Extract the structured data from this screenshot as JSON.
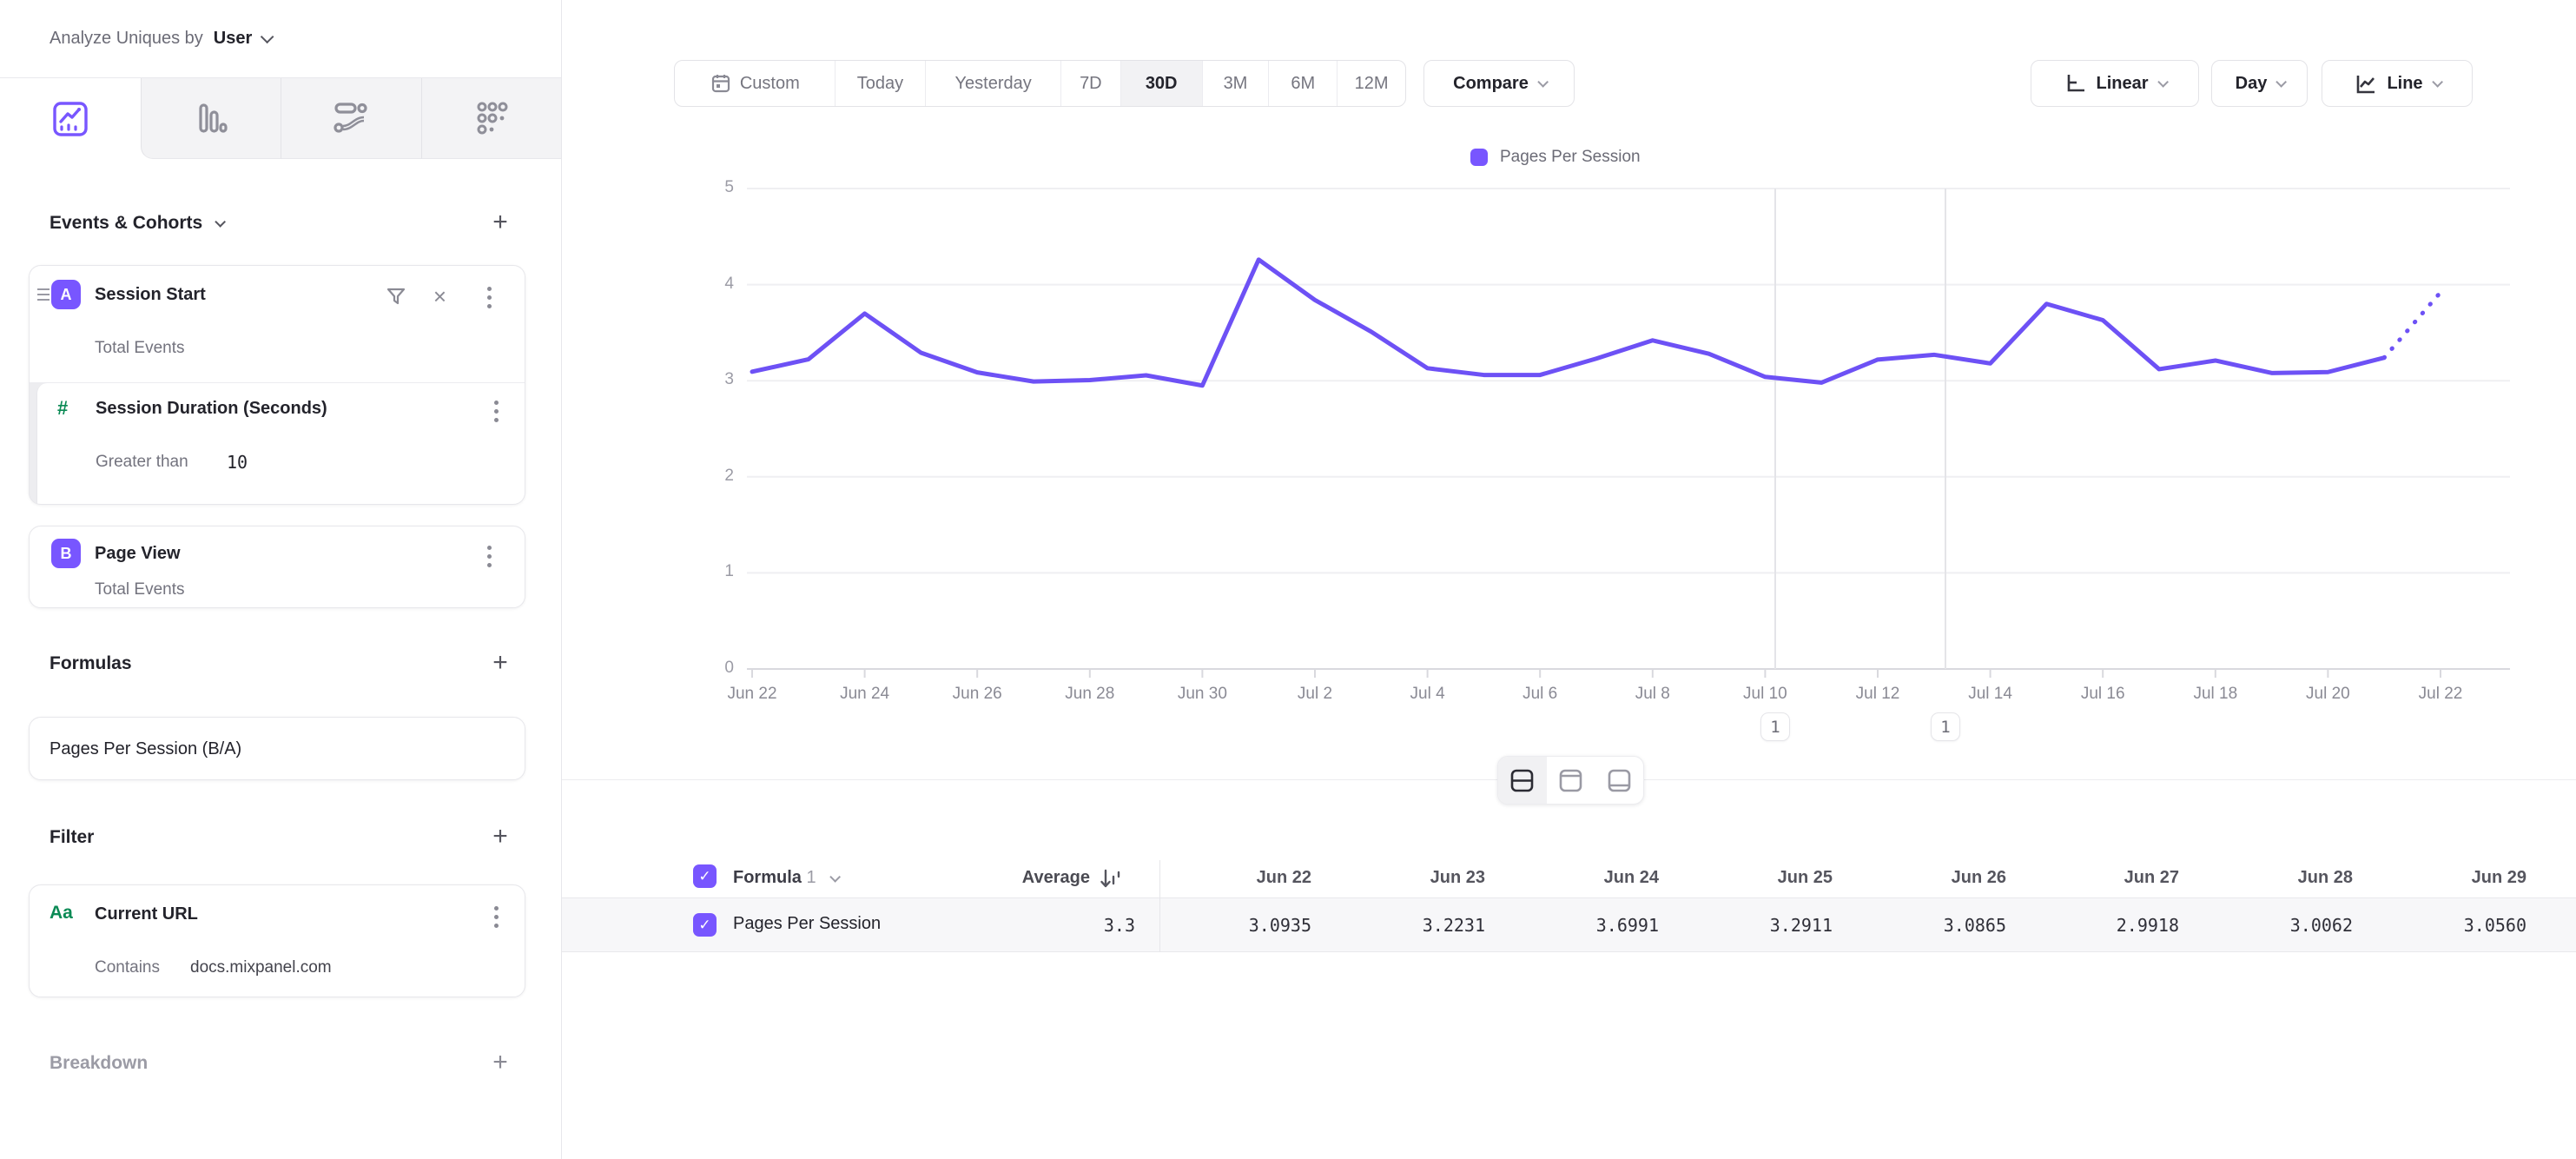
{
  "colors": {
    "accent": "#7856ff",
    "line": "#6d51f5",
    "green": "#0b8a55"
  },
  "sidebar": {
    "header": {
      "label": "Analyze Uniques by",
      "value": "User"
    },
    "tabs": [
      {
        "icon": "insights-line-chart-icon",
        "selected": true
      },
      {
        "icon": "funnels-bars-icon",
        "selected": false
      },
      {
        "icon": "flows-icon",
        "selected": false
      },
      {
        "icon": "retention-dots-icon",
        "selected": false
      }
    ],
    "events_section": {
      "title": "Events & Cohorts",
      "add_label": "+"
    },
    "event_a": {
      "badge": "A",
      "title": "Session Start",
      "subtitle": "Total Events"
    },
    "event_a_property": {
      "icon": "#",
      "title": "Session Duration (Seconds)",
      "operator": "Greater than",
      "value": "10"
    },
    "event_b": {
      "badge": "B",
      "title": "Page View",
      "subtitle": "Total Events"
    },
    "formulas_section": {
      "title": "Formulas",
      "add_label": "+"
    },
    "formula_field": {
      "value": "Pages Per Session (B/A)"
    },
    "filter_section": {
      "title": "Filter",
      "add_label": "+"
    },
    "filter_item": {
      "icon": "Aa",
      "title": "Current URL",
      "operator": "Contains",
      "value": "docs.mixpanel.com"
    },
    "breakdown_section": {
      "title": "Breakdown",
      "add_label": "+"
    }
  },
  "toolbar": {
    "date_ranges": [
      "Custom",
      "Today",
      "Yesterday",
      "7D",
      "30D",
      "3M",
      "6M",
      "12M"
    ],
    "selected_range": "30D",
    "compare_label": "Compare",
    "scale_label": "Linear",
    "granularity_label": "Day",
    "chart_type_label": "Line"
  },
  "chart_data": {
    "type": "line",
    "legend": [
      "Pages Per Session"
    ],
    "legend_position": "top-center",
    "x": [
      "Jun 22",
      "Jun 23",
      "Jun 24",
      "Jun 25",
      "Jun 26",
      "Jun 27",
      "Jun 28",
      "Jun 29",
      "Jun 30",
      "Jul 1",
      "Jul 2",
      "Jul 3",
      "Jul 4",
      "Jul 5",
      "Jul 6",
      "Jul 7",
      "Jul 8",
      "Jul 9",
      "Jul 10",
      "Jul 11",
      "Jul 12",
      "Jul 13",
      "Jul 14",
      "Jul 15",
      "Jul 16",
      "Jul 17",
      "Jul 18",
      "Jul 19",
      "Jul 20",
      "Jul 21",
      "Jul 22"
    ],
    "series": [
      {
        "name": "Pages Per Session",
        "values": [
          3.0935,
          3.2231,
          3.6991,
          3.2911,
          3.0865,
          2.9918,
          3.0062,
          3.056,
          2.95,
          4.26,
          3.84,
          3.51,
          3.13,
          3.06,
          3.06,
          3.23,
          3.42,
          3.28,
          3.04,
          2.98,
          3.22,
          3.27,
          3.18,
          3.8,
          3.63,
          3.12,
          3.21,
          3.08,
          3.09,
          3.24,
          3.92
        ]
      }
    ],
    "ylim": [
      0,
      5
    ],
    "yticks": [
      "0",
      "1",
      "2",
      "3",
      "4",
      "5"
    ],
    "xtick_labels": [
      "Jun 22",
      "Jun 24",
      "Jun 26",
      "Jun 28",
      "Jun 30",
      "Jul 2",
      "Jul 4",
      "Jul 6",
      "Jul 8",
      "Jul 10",
      "Jul 12",
      "Jul 14",
      "Jul 16",
      "Jul 18",
      "Jul 20",
      "Jul 22"
    ],
    "grid": "horizontal",
    "incomplete_last_segment": true,
    "annotations": [
      {
        "label": "1"
      },
      {
        "label": "1"
      }
    ]
  },
  "table": {
    "group_label": "Formula",
    "group_index": "1",
    "average_header": "Average",
    "columns": [
      "Jun 22",
      "Jun 23",
      "Jun 24",
      "Jun 25",
      "Jun 26",
      "Jun 27",
      "Jun 28",
      "Jun 29"
    ],
    "rows": [
      {
        "name": "Pages Per Session",
        "average": "3.3",
        "values": [
          "3.0935",
          "3.2231",
          "3.6991",
          "3.2911",
          "3.0865",
          "2.9918",
          "3.0062",
          "3.0560"
        ]
      }
    ]
  }
}
